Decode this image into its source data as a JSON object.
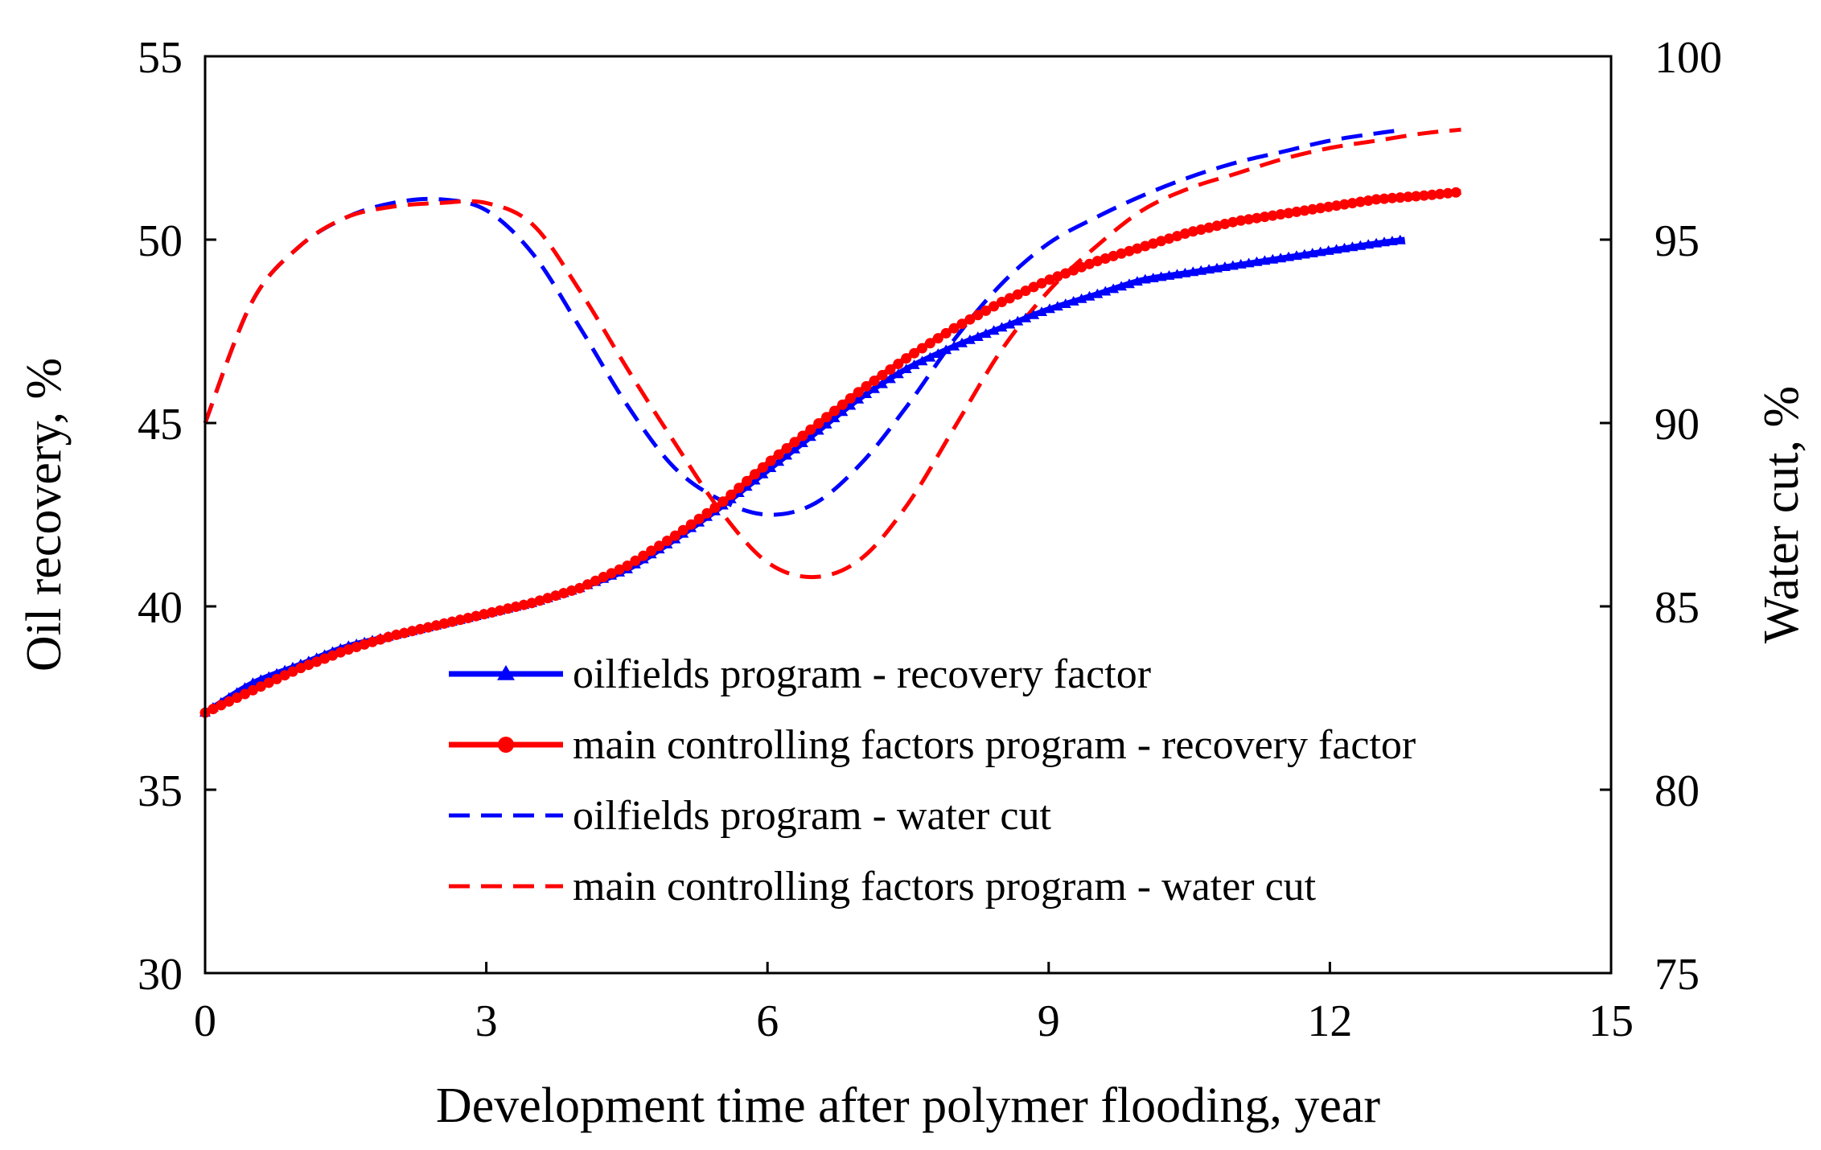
{
  "chart_data": {
    "type": "line",
    "title": "",
    "xlabel": "Development time after polymer flooding, year",
    "ylabel": "Oil recovery, %",
    "y2label": "Water cut, %",
    "xlim": [
      0,
      15
    ],
    "ylim": [
      30,
      55
    ],
    "y2lim": [
      75,
      100
    ],
    "xticks": [
      "0",
      "3",
      "6",
      "9",
      "12",
      "15"
    ],
    "yticks": [
      "30",
      "35",
      "40",
      "45",
      "50",
      "55"
    ],
    "y2ticks": [
      "75",
      "80",
      "85",
      "90",
      "95",
      "100"
    ],
    "grid": false,
    "legend_position": "center-bottom",
    "series": [
      {
        "name": "oilfields program - recovery factor",
        "axis": "left",
        "color": "#0000ff",
        "style": "solid",
        "marker": "triangle",
        "x": [
          0,
          0.5,
          1,
          1.5,
          2,
          2.5,
          3,
          3.5,
          4,
          4.5,
          5,
          5.5,
          6,
          6.5,
          7,
          7.5,
          8,
          8.5,
          9,
          9.5,
          10,
          10.5,
          11,
          11.5,
          12,
          12.5,
          12.8
        ],
        "y": [
          37.1,
          37.9,
          38.4,
          38.9,
          39.2,
          39.5,
          39.8,
          40.1,
          40.5,
          41.0,
          41.8,
          42.7,
          43.7,
          44.7,
          45.7,
          46.5,
          47.1,
          47.6,
          48.1,
          48.5,
          48.9,
          49.1,
          49.3,
          49.5,
          49.7,
          49.9,
          50.0
        ]
      },
      {
        "name": "main controlling factors program - recovery factor",
        "axis": "left",
        "color": "#ff0000",
        "style": "solid",
        "marker": "circle",
        "x": [
          0,
          0.5,
          1,
          1.5,
          2,
          2.5,
          3,
          3.5,
          4,
          4.5,
          5,
          5.5,
          6,
          6.5,
          7,
          7.5,
          8,
          8.5,
          9,
          9.5,
          10,
          10.5,
          11,
          11.5,
          12,
          12.5,
          13,
          13.4
        ],
        "y": [
          37.1,
          37.7,
          38.3,
          38.8,
          39.2,
          39.5,
          39.8,
          40.1,
          40.5,
          41.1,
          41.9,
          42.8,
          43.9,
          44.9,
          45.9,
          46.8,
          47.6,
          48.3,
          48.9,
          49.4,
          49.8,
          50.2,
          50.5,
          50.7,
          50.9,
          51.1,
          51.2,
          51.3
        ]
      },
      {
        "name": "oilfields program - water cut",
        "axis": "right",
        "color": "#0000ff",
        "style": "dashed",
        "marker": "none",
        "x": [
          0,
          0.5,
          1,
          1.5,
          2,
          2.5,
          3,
          3.5,
          4,
          4.5,
          5,
          5.5,
          6,
          6.5,
          7,
          7.5,
          8,
          8.5,
          9,
          9.5,
          10,
          10.5,
          11,
          11.5,
          12,
          12.5,
          12.8
        ],
        "y": [
          90.0,
          93.3,
          94.8,
          95.6,
          96.0,
          96.1,
          95.8,
          94.6,
          92.6,
          90.5,
          88.8,
          87.9,
          87.5,
          87.8,
          88.9,
          90.5,
          92.3,
          93.8,
          94.9,
          95.6,
          96.2,
          96.7,
          97.1,
          97.4,
          97.7,
          97.9,
          98.0
        ]
      },
      {
        "name": "main controlling factors program - water cut",
        "axis": "right",
        "color": "#ff0000",
        "style": "dashed",
        "marker": "none",
        "x": [
          0,
          0.5,
          1,
          1.5,
          2,
          2.5,
          3,
          3.5,
          4,
          4.5,
          5,
          5.5,
          6,
          6.5,
          7,
          7.5,
          8,
          8.5,
          9,
          9.5,
          10,
          10.5,
          11,
          11.5,
          12,
          12.5,
          13,
          13.4
        ],
        "y": [
          90.0,
          93.3,
          94.8,
          95.6,
          95.9,
          96.0,
          96.0,
          95.4,
          93.6,
          91.5,
          89.5,
          87.6,
          86.2,
          85.8,
          86.3,
          87.8,
          89.9,
          92.0,
          93.6,
          94.8,
          95.8,
          96.4,
          96.8,
          97.2,
          97.5,
          97.7,
          97.9,
          98.0
        ]
      }
    ]
  }
}
